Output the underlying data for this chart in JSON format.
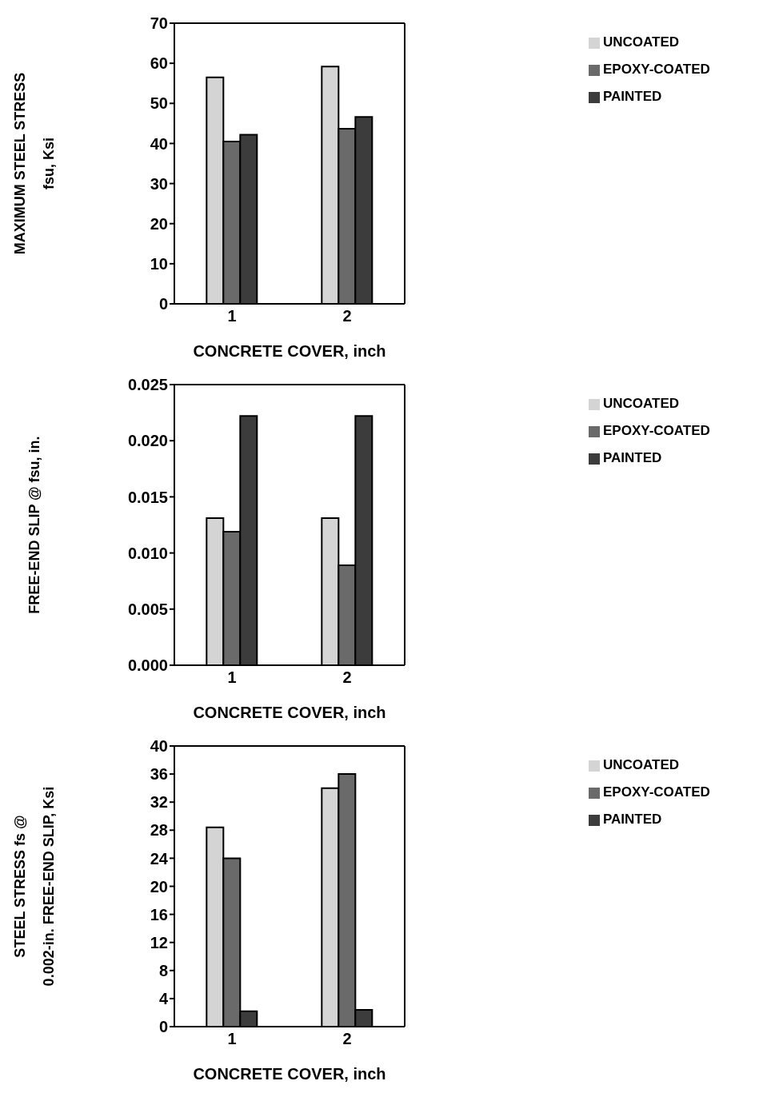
{
  "chart_data": [
    {
      "type": "bar",
      "categories": [
        "1",
        "2"
      ],
      "xlabel": "CONCRETE COVER, inch",
      "ylabel": "MAXIMUM STEEL STRESS\nfsu, Ksi",
      "ylim": [
        0,
        70
      ],
      "yticks": [
        0,
        10,
        20,
        30,
        40,
        50,
        60,
        70
      ],
      "legend": "top right",
      "series": [
        {
          "name": "UNCOATED",
          "color": "#d4d4d4",
          "values": [
            56.5,
            59.2
          ]
        },
        {
          "name": "EPOXY-COATED",
          "color": "#6a6a6a",
          "values": [
            40.5,
            43.7
          ]
        },
        {
          "name": "PAINTED",
          "color": "#3c3c3c",
          "values": [
            42.2,
            46.6
          ]
        }
      ]
    },
    {
      "type": "bar",
      "categories": [
        "1",
        "2"
      ],
      "xlabel": "CONCRETE COVER, inch",
      "ylabel": "FREE-END SLIP @ fsu, in.",
      "ylim": [
        0,
        0.025
      ],
      "yticks": [
        {
          "value": 0,
          "label": "0.000"
        },
        {
          "value": 0.005,
          "label": "0.005"
        },
        {
          "value": 0.01,
          "label": "0.010"
        },
        {
          "value": 0.015,
          "label": "0.015"
        },
        {
          "value": 0.02,
          "label": "0.020"
        },
        {
          "value": 0.025,
          "label": "0.025"
        }
      ],
      "legend": "top right",
      "series": [
        {
          "name": "UNCOATED",
          "color": "#d4d4d4",
          "values": [
            0.0131,
            0.0131
          ]
        },
        {
          "name": "EPOXY-COATED",
          "color": "#6a6a6a",
          "values": [
            0.0119,
            0.0089
          ]
        },
        {
          "name": "PAINTED",
          "color": "#3c3c3c",
          "values": [
            0.0222,
            0.0222
          ]
        }
      ]
    },
    {
      "type": "bar",
      "categories": [
        "1",
        "2"
      ],
      "xlabel": "CONCRETE COVER, inch",
      "ylabel": "STEEL STRESS fs @\n0.002-in. FREE-END SLIP, Ksi",
      "ylim": [
        0,
        40
      ],
      "yticks": [
        0,
        4,
        8,
        12,
        16,
        20,
        24,
        28,
        32,
        36,
        40
      ],
      "legend": "top right",
      "series": [
        {
          "name": "UNCOATED",
          "color": "#d4d4d4",
          "values": [
            28.4,
            34
          ]
        },
        {
          "name": "EPOXY-COATED",
          "color": "#6a6a6a",
          "values": [
            24,
            36
          ]
        },
        {
          "name": "PAINTED",
          "color": "#3c3c3c",
          "values": [
            2.2,
            2.4
          ]
        }
      ]
    }
  ]
}
